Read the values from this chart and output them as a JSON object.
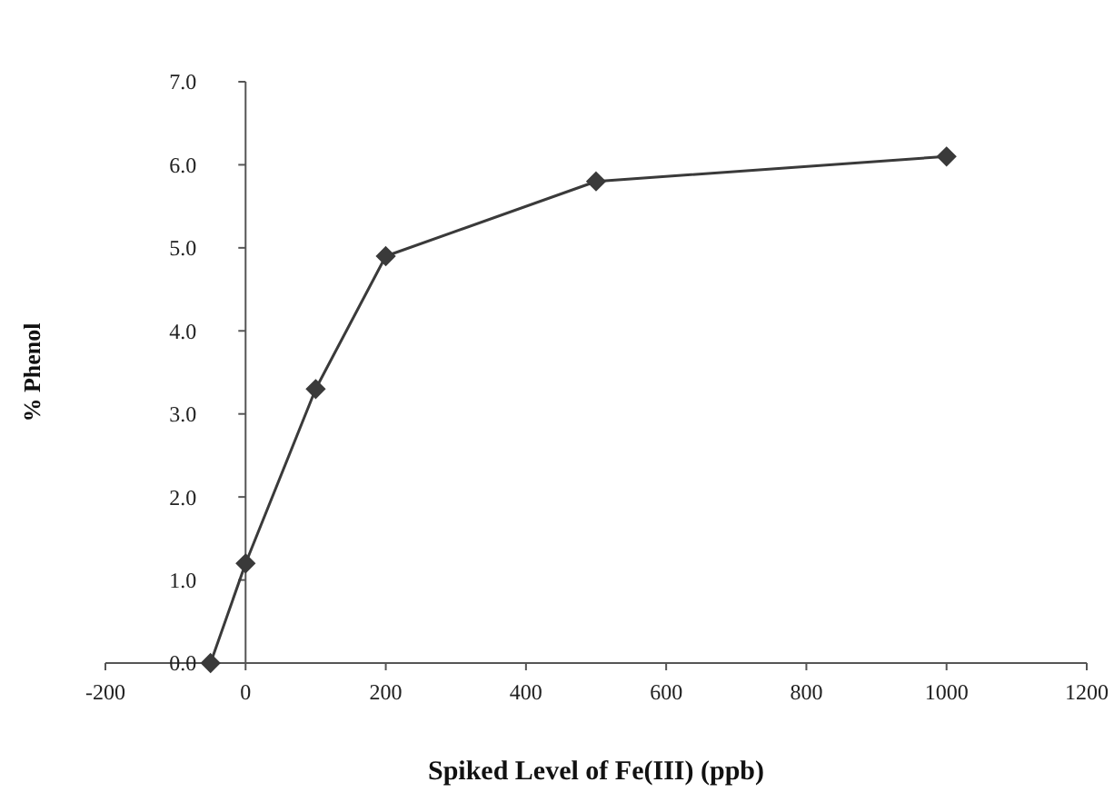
{
  "chart_data": {
    "type": "line",
    "xlabel": "Spiked Level of Fe(III) (ppb)",
    "ylabel": "% Phenol",
    "x": [
      -50,
      0,
      100,
      200,
      500,
      1000
    ],
    "series": [
      {
        "color": "#3a3a3a",
        "values": [
          0,
          1.2,
          3.3,
          4.9,
          5.8,
          6.1
        ]
      }
    ],
    "xlim": [
      -200,
      1200
    ],
    "xticks": [
      -200,
      0,
      200,
      400,
      600,
      800,
      1000,
      1200
    ],
    "ylim": [
      0,
      7
    ],
    "yticks": [
      {
        "value": 0,
        "label": "0.0"
      },
      {
        "value": 1,
        "label": "1.0"
      },
      {
        "value": 2,
        "label": "2.0"
      },
      {
        "value": 3,
        "label": "3.0"
      },
      {
        "value": 4,
        "label": "4.0"
      },
      {
        "value": 5,
        "label": "5.0"
      },
      {
        "value": 6,
        "label": "6.0"
      },
      {
        "value": 7,
        "label": "7.0"
      }
    ],
    "marker": "diamond",
    "line_style": "solid"
  }
}
